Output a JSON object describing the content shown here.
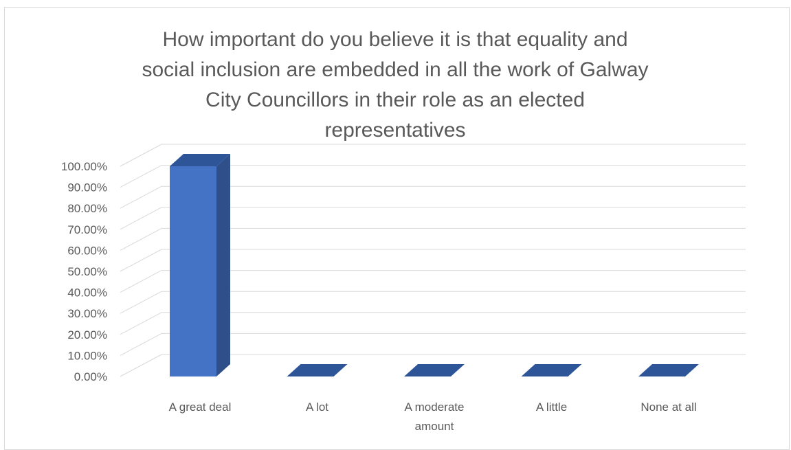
{
  "chart_data": {
    "type": "bar",
    "title": "How important do you believe it is that equality and social inclusion are embedded in all the work of Galway City Councillors in their role as an elected representatives",
    "categories": [
      "A great deal",
      "A lot",
      "A moderate amount",
      "A little",
      "None at all"
    ],
    "values": [
      1.0,
      0.0,
      0.0,
      0.0,
      0.0
    ],
    "ylim": [
      0,
      1
    ],
    "yticks": [
      "0.00%",
      "10.00%",
      "20.00%",
      "30.00%",
      "40.00%",
      "50.00%",
      "60.00%",
      "70.00%",
      "80.00%",
      "90.00%",
      "100.00%"
    ],
    "grid": true,
    "legend": "none",
    "style": "3d-column",
    "colors": {
      "front": "#4472c4",
      "side": "#2f4f8a",
      "top": "#2e5597",
      "grid": "#d9d9d9",
      "text": "#595959"
    }
  }
}
